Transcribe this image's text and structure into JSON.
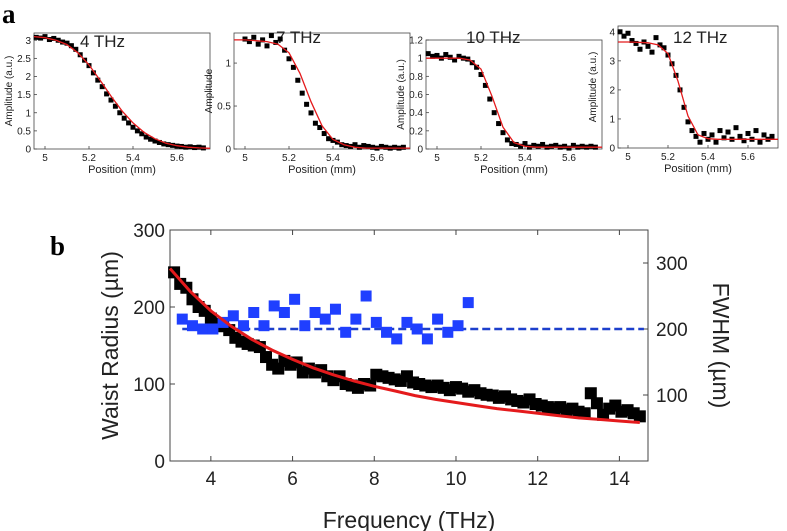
{
  "figure": {
    "panel_a_label": "a",
    "panel_b_label": "b"
  },
  "colors": {
    "marker": "#000000",
    "fit": "#e41a1c",
    "fwhm": "#1f3fff",
    "fwhm_line": "#1d3fcc"
  },
  "chart_data": [
    {
      "type": "scatter",
      "panel": "a",
      "title": "4 THz",
      "xlabel": "Position (mm)",
      "ylabel": "Amplitude (a.u.)",
      "xlim": [
        4.95,
        5.75
      ],
      "ylim": [
        0,
        3.2
      ],
      "xticks": [
        5,
        5.2,
        5.4,
        5.6
      ],
      "xtick_labels": [
        "5",
        "5.2",
        "5.4",
        "5.6"
      ],
      "yticks": [
        0,
        0.5,
        1,
        1.5,
        2,
        2.5,
        3
      ],
      "ytick_labels": [
        "0",
        "0.5",
        "1",
        "1.5",
        "2",
        "2.5",
        "3"
      ],
      "x": [
        4.96,
        4.98,
        5.0,
        5.02,
        5.04,
        5.06,
        5.08,
        5.1,
        5.12,
        5.14,
        5.16,
        5.18,
        5.2,
        5.22,
        5.24,
        5.26,
        5.28,
        5.3,
        5.32,
        5.34,
        5.36,
        5.38,
        5.4,
        5.42,
        5.44,
        5.46,
        5.48,
        5.5,
        5.52,
        5.54,
        5.56,
        5.58,
        5.6,
        5.62,
        5.64,
        5.66,
        5.68,
        5.7,
        5.72
      ],
      "y": [
        3.08,
        3.06,
        3.1,
        3.02,
        3.05,
        3.0,
        2.95,
        2.92,
        2.85,
        2.75,
        2.6,
        2.45,
        2.3,
        2.1,
        1.9,
        1.72,
        1.52,
        1.35,
        1.18,
        1.0,
        0.85,
        0.72,
        0.6,
        0.5,
        0.42,
        0.33,
        0.27,
        0.22,
        0.18,
        0.14,
        0.12,
        0.1,
        0.08,
        0.07,
        0.05,
        0.06,
        0.04,
        0.05,
        0.03
      ],
      "fit_x": [
        4.95,
        5.0,
        5.05,
        5.1,
        5.15,
        5.2,
        5.25,
        5.3,
        5.35,
        5.4,
        5.45,
        5.5,
        5.55,
        5.6,
        5.65,
        5.7,
        5.75
      ],
      "fit_y": [
        3.1,
        3.07,
        3.0,
        2.88,
        2.65,
        2.32,
        1.9,
        1.46,
        1.05,
        0.72,
        0.46,
        0.28,
        0.16,
        0.09,
        0.05,
        0.03,
        0.02
      ]
    },
    {
      "type": "scatter",
      "panel": "a",
      "title": "7 THz",
      "xlabel": "Position (mm)",
      "ylabel": "Amplitude",
      "xlim": [
        4.95,
        5.75
      ],
      "ylim": [
        0,
        1.35
      ],
      "xticks": [
        5,
        5.2,
        5.4,
        5.6
      ],
      "xtick_labels": [
        "5",
        "5.2",
        "5.4",
        "5.6"
      ],
      "yticks": [
        0,
        0.5,
        1
      ],
      "ytick_labels": [
        "0",
        "0.5",
        "1"
      ],
      "x": [
        5.0,
        5.02,
        5.04,
        5.06,
        5.08,
        5.1,
        5.12,
        5.14,
        5.16,
        5.18,
        5.2,
        5.22,
        5.24,
        5.26,
        5.28,
        5.3,
        5.32,
        5.34,
        5.36,
        5.38,
        5.4,
        5.42,
        5.44,
        5.46,
        5.48,
        5.5,
        5.52,
        5.54,
        5.56,
        5.58,
        5.6,
        5.62,
        5.64,
        5.66,
        5.68,
        5.7,
        5.72
      ],
      "y": [
        1.28,
        1.25,
        1.3,
        1.22,
        1.27,
        1.2,
        1.32,
        1.24,
        1.28,
        1.15,
        1.05,
        0.95,
        0.8,
        0.65,
        0.52,
        0.42,
        0.3,
        0.25,
        0.18,
        0.12,
        0.1,
        0.08,
        0.05,
        0.04,
        0.03,
        0.05,
        0.02,
        0.04,
        0.03,
        0.02,
        0.01,
        0.03,
        0.02,
        0.01,
        0.02,
        0.01,
        0.02
      ],
      "fit_x": [
        4.95,
        5.0,
        5.05,
        5.1,
        5.15,
        5.2,
        5.25,
        5.3,
        5.35,
        5.4,
        5.45,
        5.5,
        5.55,
        5.6,
        5.65,
        5.7,
        5.75
      ],
      "fit_y": [
        1.27,
        1.27,
        1.26,
        1.25,
        1.22,
        1.12,
        0.88,
        0.55,
        0.27,
        0.11,
        0.05,
        0.02,
        0.01,
        0.01,
        0.01,
        0.01,
        0.01
      ]
    },
    {
      "type": "scatter",
      "panel": "a",
      "title": "10 THz",
      "xlabel": "Position (mm)",
      "ylabel": "Amplitude (a.u.)",
      "xlim": [
        4.95,
        5.75
      ],
      "ylim": [
        0,
        1.2
      ],
      "xticks": [
        5,
        5.2,
        5.4,
        5.6
      ],
      "xtick_labels": [
        "5",
        "5.2",
        "5.4",
        "5.6"
      ],
      "yticks": [
        0,
        0.2,
        0.4,
        0.6,
        0.8,
        1,
        1.2
      ],
      "ytick_labels": [
        "0",
        "0.2",
        "0.4",
        "0.6",
        "0.8",
        "1",
        "1.2"
      ],
      "x": [
        4.96,
        4.98,
        5.0,
        5.02,
        5.04,
        5.06,
        5.08,
        5.1,
        5.12,
        5.14,
        5.16,
        5.18,
        5.2,
        5.22,
        5.24,
        5.26,
        5.28,
        5.3,
        5.32,
        5.34,
        5.36,
        5.38,
        5.4,
        5.42,
        5.44,
        5.46,
        5.48,
        5.5,
        5.52,
        5.54,
        5.56,
        5.58,
        5.6,
        5.62,
        5.64,
        5.66,
        5.68,
        5.7,
        5.72
      ],
      "y": [
        1.05,
        1.02,
        1.03,
        1.0,
        1.04,
        1.01,
        0.98,
        1.02,
        1.0,
        0.99,
        0.95,
        0.9,
        0.82,
        0.7,
        0.55,
        0.4,
        0.28,
        0.18,
        0.1,
        0.06,
        0.05,
        0.03,
        0.06,
        0.02,
        0.04,
        0.03,
        0.05,
        0.02,
        0.03,
        0.04,
        0.02,
        0.03,
        0.01,
        0.04,
        0.02,
        0.03,
        0.02,
        0.03,
        0.02
      ],
      "fit_x": [
        4.95,
        5.0,
        5.05,
        5.1,
        5.15,
        5.2,
        5.25,
        5.3,
        5.35,
        5.4,
        5.45,
        5.5,
        5.55,
        5.6,
        5.65,
        5.7,
        5.75
      ],
      "fit_y": [
        1.0,
        1.0,
        1.0,
        1.0,
        0.98,
        0.88,
        0.58,
        0.24,
        0.07,
        0.03,
        0.02,
        0.02,
        0.02,
        0.02,
        0.02,
        0.02,
        0.02
      ]
    },
    {
      "type": "scatter",
      "panel": "a",
      "title": "12 THz",
      "xlabel": "Position (mm)",
      "ylabel": "Amplitude (a.u.)",
      "xlim": [
        4.95,
        5.75
      ],
      "ylim": [
        0,
        4.2
      ],
      "xticks": [
        5,
        5.2,
        5.4,
        5.6
      ],
      "xtick_labels": [
        "5",
        "5.2",
        "5.4",
        "5.6"
      ],
      "yticks": [
        0,
        1,
        2,
        3,
        4
      ],
      "ytick_labels": [
        "0",
        "1",
        "2",
        "3",
        "4"
      ],
      "x": [
        4.96,
        4.98,
        5.0,
        5.02,
        5.04,
        5.06,
        5.08,
        5.1,
        5.12,
        5.14,
        5.16,
        5.18,
        5.2,
        5.22,
        5.24,
        5.26,
        5.28,
        5.3,
        5.32,
        5.34,
        5.36,
        5.38,
        5.4,
        5.42,
        5.44,
        5.46,
        5.48,
        5.5,
        5.52,
        5.54,
        5.56,
        5.58,
        5.6,
        5.62,
        5.64,
        5.66,
        5.68,
        5.7,
        5.72
      ],
      "y": [
        4.0,
        3.85,
        3.95,
        3.7,
        3.6,
        3.4,
        3.65,
        3.5,
        3.3,
        3.8,
        3.55,
        3.45,
        3.2,
        2.9,
        2.5,
        2.0,
        1.4,
        0.9,
        0.6,
        0.4,
        0.2,
        0.5,
        0.3,
        0.45,
        0.2,
        0.6,
        0.35,
        0.55,
        0.3,
        0.7,
        0.4,
        0.25,
        0.5,
        0.3,
        0.6,
        0.2,
        0.45,
        0.3,
        0.4
      ],
      "fit_x": [
        4.95,
        5.0,
        5.05,
        5.1,
        5.15,
        5.2,
        5.25,
        5.3,
        5.35,
        5.4,
        5.45,
        5.5,
        5.55,
        5.6,
        5.65,
        5.7,
        5.75
      ],
      "fit_y": [
        3.65,
        3.65,
        3.64,
        3.62,
        3.55,
        3.25,
        2.3,
        1.1,
        0.45,
        0.32,
        0.3,
        0.3,
        0.3,
        0.3,
        0.3,
        0.3,
        0.3
      ]
    },
    {
      "type": "scatter",
      "panel": "b",
      "title": "",
      "xlabel": "Frequency (THz)",
      "ylabel": "Waist Radius (µm)",
      "ylabel_right": "FWHM (µm)",
      "xlim": [
        3,
        14.7
      ],
      "ylim": [
        0,
        300
      ],
      "ylim_right": [
        0,
        350
      ],
      "xticks": [
        4,
        6,
        8,
        10,
        12,
        14
      ],
      "xtick_labels": [
        "4",
        "6",
        "8",
        "10",
        "12",
        "14"
      ],
      "yticks": [
        0,
        100,
        200,
        300
      ],
      "ytick_labels": [
        "0",
        "100",
        "200",
        "300"
      ],
      "yticks_right": [
        100,
        200,
        300
      ],
      "ytick_labels_right": [
        "100",
        "200",
        "300"
      ],
      "series": [
        {
          "name": "Waist radius",
          "axis": "left",
          "marker": "square",
          "color": "#000000",
          "x": [
            3.1,
            3.25,
            3.4,
            3.55,
            3.7,
            3.85,
            4.0,
            4.15,
            4.3,
            4.45,
            4.6,
            4.75,
            4.9,
            5.05,
            5.2,
            5.35,
            5.5,
            5.65,
            5.8,
            5.95,
            6.1,
            6.25,
            6.4,
            6.55,
            6.7,
            6.85,
            7.0,
            7.15,
            7.3,
            7.45,
            7.6,
            7.75,
            7.9,
            8.05,
            8.2,
            8.35,
            8.5,
            8.65,
            8.8,
            8.95,
            9.1,
            9.25,
            9.4,
            9.55,
            9.7,
            9.85,
            10.0,
            10.15,
            10.3,
            10.45,
            10.6,
            10.75,
            10.9,
            11.05,
            11.2,
            11.35,
            11.5,
            11.65,
            11.8,
            11.95,
            12.1,
            12.25,
            12.4,
            12.55,
            12.7,
            12.85,
            13.0,
            13.15,
            13.3,
            13.45,
            13.6,
            13.75,
            13.9,
            14.05,
            14.2,
            14.35,
            14.5
          ],
          "y": [
            245,
            230,
            225,
            210,
            200,
            195,
            185,
            178,
            175,
            170,
            160,
            155,
            152,
            150,
            148,
            135,
            125,
            120,
            130,
            125,
            128,
            115,
            120,
            115,
            118,
            110,
            105,
            110,
            100,
            98,
            95,
            100,
            98,
            112,
            110,
            108,
            106,
            104,
            110,
            102,
            100,
            98,
            96,
            98,
            95,
            92,
            96,
            94,
            90,
            92,
            88,
            86,
            85,
            82,
            84,
            80,
            78,
            76,
            80,
            74,
            72,
            70,
            68,
            70,
            66,
            68,
            64,
            62,
            88,
            75,
            60,
            68,
            72,
            64,
            66,
            62,
            58
          ]
        },
        {
          "name": "FWHM",
          "axis": "right",
          "marker": "square",
          "color": "#1f3fff",
          "x": [
            3.3,
            3.55,
            3.8,
            4.05,
            4.3,
            4.55,
            4.8,
            5.05,
            5.3,
            5.55,
            5.8,
            6.05,
            6.3,
            6.55,
            6.8,
            7.05,
            7.3,
            7.55,
            7.8,
            8.05,
            8.3,
            8.55,
            8.8,
            9.05,
            9.3,
            9.55,
            9.8,
            10.05,
            10.3
          ],
          "y": [
            215,
            205,
            200,
            200,
            210,
            220,
            205,
            225,
            205,
            235,
            225,
            245,
            205,
            225,
            215,
            230,
            195,
            215,
            250,
            210,
            195,
            185,
            210,
            200,
            185,
            215,
            195,
            205,
            240
          ]
        }
      ],
      "fit_waist_x": [
        3.0,
        3.5,
        4.0,
        4.5,
        5.0,
        5.5,
        6.0,
        6.5,
        7.0,
        7.5,
        8.0,
        8.5,
        9.0,
        9.5,
        10.0,
        10.5,
        11.0,
        11.5,
        12.0,
        12.5,
        13.0,
        13.5,
        14.0,
        14.5
      ],
      "fit_waist_y": [
        250,
        220,
        195,
        175,
        158,
        144,
        132,
        121,
        112,
        104,
        97,
        91,
        85,
        80,
        76,
        72,
        68,
        65,
        62,
        59,
        56,
        54,
        52,
        50
      ],
      "fwhm_mean_line": {
        "x": [
          3.3,
          14.6
        ],
        "y": 200
      }
    }
  ]
}
